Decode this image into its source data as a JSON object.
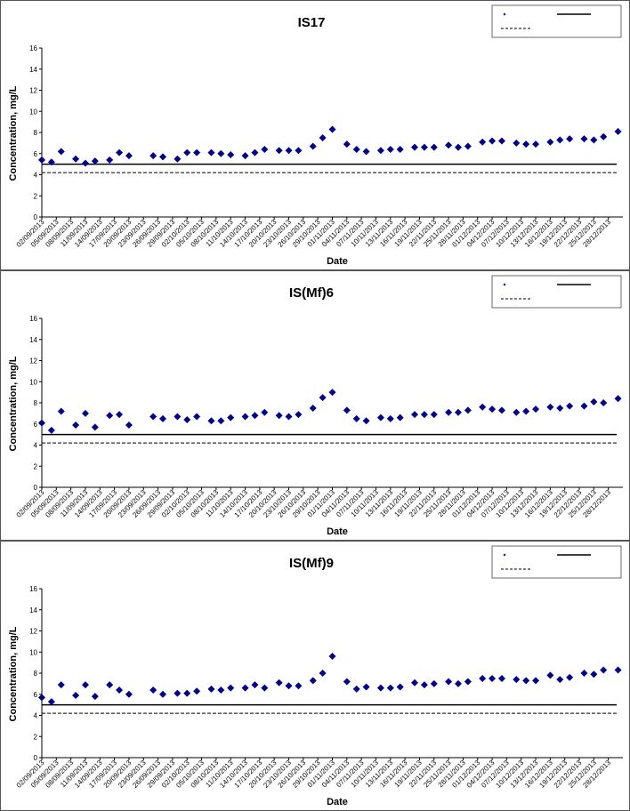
{
  "chart_data": [
    {
      "type": "scatter",
      "title": "IS17",
      "xlabel": "Date",
      "ylabel": "Concentration, mg/L",
      "ylim": [
        0,
        16
      ],
      "yticks": [
        0,
        2,
        4,
        6,
        8,
        10,
        12,
        14,
        16
      ],
      "xlim": [
        "02/09/2013",
        "31/12/2013"
      ],
      "xtick_labels": [
        "02/09/2013",
        "05/09/2013",
        "08/09/2013",
        "11/09/2013",
        "14/09/2013",
        "17/09/2013",
        "20/09/2013",
        "23/09/2013",
        "26/09/2013",
        "29/09/2013",
        "02/10/2013",
        "05/10/2013",
        "08/10/2013",
        "11/10/2013",
        "14/10/2013",
        "17/10/2013",
        "20/10/2013",
        "23/10/2013",
        "26/10/2013",
        "29/10/2013",
        "01/11/2013",
        "04/11/2013",
        "07/11/2013",
        "10/11/2013",
        "13/11/2013",
        "16/11/2013",
        "19/11/2013",
        "22/11/2013",
        "25/11/2013",
        "28/11/2013",
        "01/12/2013",
        "04/12/2013",
        "07/12/2013",
        "10/12/2013",
        "13/12/2013",
        "16/12/2013",
        "19/12/2013",
        "22/12/2013",
        "25/12/2013",
        "28/12/2013"
      ],
      "grid": false,
      "legend_position": "top-right",
      "marker_color": "#00008b",
      "series": [
        {
          "marker": "diamond",
          "x": [
            "02/09/2013",
            "04/09/2013",
            "06/09/2013",
            "09/09/2013",
            "11/09/2013",
            "13/09/2013",
            "16/09/2013",
            "18/09/2013",
            "20/09/2013",
            "25/09/2013",
            "27/09/2013",
            "30/09/2013",
            "02/10/2013",
            "04/10/2013",
            "07/10/2013",
            "09/10/2013",
            "11/10/2013",
            "14/10/2013",
            "16/10/2013",
            "18/10/2013",
            "21/10/2013",
            "23/10/2013",
            "25/10/2013",
            "28/10/2013",
            "30/10/2013",
            "01/11/2013",
            "04/11/2013",
            "06/11/2013",
            "08/11/2013",
            "11/11/2013",
            "13/11/2013",
            "15/11/2013",
            "18/11/2013",
            "20/11/2013",
            "22/11/2013",
            "25/11/2013",
            "27/11/2013",
            "29/11/2013",
            "02/12/2013",
            "04/12/2013",
            "06/12/2013",
            "09/12/2013",
            "11/12/2013",
            "13/12/2013",
            "16/12/2013",
            "18/12/2013",
            "20/12/2013",
            "23/12/2013",
            "25/12/2013",
            "27/12/2013",
            "30/12/2013"
          ],
          "y": [
            5.4,
            5.2,
            6.2,
            5.5,
            5.1,
            5.3,
            5.4,
            6.1,
            5.8,
            5.8,
            5.7,
            5.5,
            6.1,
            6.1,
            6.1,
            6.0,
            5.9,
            5.8,
            6.1,
            6.4,
            6.3,
            6.3,
            6.3,
            6.7,
            7.5,
            8.3,
            6.9,
            6.4,
            6.2,
            6.3,
            6.4,
            6.4,
            6.6,
            6.6,
            6.6,
            6.8,
            6.6,
            6.7,
            7.1,
            7.2,
            7.2,
            7.0,
            6.9,
            6.9,
            7.1,
            7.3,
            7.4,
            7.4,
            7.3,
            7.6,
            8.1
          ]
        },
        {
          "style": "solid",
          "y_constant": 5.0
        },
        {
          "style": "dashed",
          "y_constant": 4.2
        }
      ]
    },
    {
      "type": "scatter",
      "title": "IS(Mf)6",
      "xlabel": "Date",
      "ylabel": "Concentration, mg/L",
      "ylim": [
        0,
        16
      ],
      "yticks": [
        0,
        2,
        4,
        6,
        8,
        10,
        12,
        14,
        16
      ],
      "xlim": [
        "02/09/2013",
        "31/12/2013"
      ],
      "xtick_labels": [
        "02/09/2013",
        "05/09/2013",
        "08/09/2013",
        "11/09/2013",
        "14/09/2013",
        "17/09/2013",
        "20/09/2013",
        "23/09/2013",
        "26/09/2013",
        "29/09/2013",
        "02/10/2013",
        "05/10/2013",
        "08/10/2013",
        "11/10/2013",
        "14/10/2013",
        "17/10/2013",
        "20/10/2013",
        "23/10/2013",
        "26/10/2013",
        "29/10/2013",
        "01/11/2013",
        "04/11/2013",
        "07/11/2013",
        "10/11/2013",
        "13/11/2013",
        "16/11/2013",
        "19/11/2013",
        "22/11/2013",
        "25/11/2013",
        "28/11/2013",
        "01/12/2013",
        "04/12/2013",
        "07/12/2013",
        "10/12/2013",
        "13/12/2013",
        "16/12/2013",
        "19/12/2013",
        "22/12/2013",
        "25/12/2013",
        "28/12/2013"
      ],
      "grid": false,
      "legend_position": "top-right",
      "marker_color": "#00008b",
      "series": [
        {
          "marker": "diamond",
          "x": [
            "02/09/2013",
            "04/09/2013",
            "06/09/2013",
            "09/09/2013",
            "11/09/2013",
            "13/09/2013",
            "16/09/2013",
            "18/09/2013",
            "20/09/2013",
            "25/09/2013",
            "27/09/2013",
            "30/09/2013",
            "02/10/2013",
            "04/10/2013",
            "07/10/2013",
            "09/10/2013",
            "11/10/2013",
            "14/10/2013",
            "16/10/2013",
            "18/10/2013",
            "21/10/2013",
            "23/10/2013",
            "25/10/2013",
            "28/10/2013",
            "30/10/2013",
            "01/11/2013",
            "04/11/2013",
            "06/11/2013",
            "08/11/2013",
            "11/11/2013",
            "13/11/2013",
            "15/11/2013",
            "18/11/2013",
            "20/11/2013",
            "22/11/2013",
            "25/11/2013",
            "27/11/2013",
            "29/11/2013",
            "02/12/2013",
            "04/12/2013",
            "06/12/2013",
            "09/12/2013",
            "11/12/2013",
            "13/12/2013",
            "16/12/2013",
            "18/12/2013",
            "20/12/2013",
            "23/12/2013",
            "25/12/2013",
            "27/12/2013",
            "30/12/2013"
          ],
          "y": [
            6.1,
            5.4,
            7.2,
            5.9,
            7.0,
            5.7,
            6.8,
            6.9,
            5.9,
            6.7,
            6.5,
            6.7,
            6.4,
            6.7,
            6.3,
            6.3,
            6.6,
            6.7,
            6.8,
            7.1,
            6.8,
            6.7,
            6.9,
            7.5,
            8.5,
            9.0,
            7.3,
            6.5,
            6.3,
            6.6,
            6.5,
            6.6,
            6.9,
            6.9,
            6.9,
            7.1,
            7.1,
            7.3,
            7.6,
            7.4,
            7.3,
            7.1,
            7.2,
            7.4,
            7.6,
            7.5,
            7.7,
            7.7,
            8.1,
            8.0,
            8.4
          ]
        },
        {
          "style": "solid",
          "y_constant": 5.0
        },
        {
          "style": "dashed",
          "y_constant": 4.2
        }
      ]
    },
    {
      "type": "scatter",
      "title": "IS(Mf)9",
      "xlabel": "Date",
      "ylabel": "Concentration, mg/L",
      "ylim": [
        0,
        16
      ],
      "yticks": [
        0,
        2,
        4,
        6,
        8,
        10,
        12,
        14,
        16
      ],
      "xlim": [
        "02/09/2013",
        "31/12/2013"
      ],
      "xtick_labels": [
        "02/09/2013",
        "05/09/2013",
        "08/09/2013",
        "11/09/2013",
        "14/09/2013",
        "17/09/2013",
        "20/09/2013",
        "23/09/2013",
        "26/09/2013",
        "29/09/2013",
        "02/10/2013",
        "05/10/2013",
        "08/10/2013",
        "11/10/2013",
        "14/10/2013",
        "17/10/2013",
        "20/10/2013",
        "23/10/2013",
        "26/10/2013",
        "29/10/2013",
        "01/11/2013",
        "04/11/2013",
        "07/11/2013",
        "10/11/2013",
        "13/11/2013",
        "16/11/2013",
        "19/11/2013",
        "22/11/2013",
        "25/11/2013",
        "28/11/2013",
        "01/12/2013",
        "04/12/2013",
        "07/12/2013",
        "10/12/2013",
        "13/12/2013",
        "16/12/2013",
        "19/12/2013",
        "22/12/2013",
        "25/12/2013",
        "28/12/2013"
      ],
      "grid": false,
      "legend_position": "top-right",
      "marker_color": "#00008b",
      "series": [
        {
          "marker": "diamond",
          "x": [
            "02/09/2013",
            "04/09/2013",
            "06/09/2013",
            "09/09/2013",
            "11/09/2013",
            "13/09/2013",
            "16/09/2013",
            "18/09/2013",
            "20/09/2013",
            "25/09/2013",
            "27/09/2013",
            "30/09/2013",
            "02/10/2013",
            "04/10/2013",
            "07/10/2013",
            "09/10/2013",
            "11/10/2013",
            "14/10/2013",
            "16/10/2013",
            "18/10/2013",
            "21/10/2013",
            "23/10/2013",
            "25/10/2013",
            "28/10/2013",
            "30/10/2013",
            "01/11/2013",
            "04/11/2013",
            "06/11/2013",
            "08/11/2013",
            "11/11/2013",
            "13/11/2013",
            "15/11/2013",
            "18/11/2013",
            "20/11/2013",
            "22/11/2013",
            "25/11/2013",
            "27/11/2013",
            "29/11/2013",
            "02/12/2013",
            "04/12/2013",
            "06/12/2013",
            "09/12/2013",
            "11/12/2013",
            "13/12/2013",
            "16/12/2013",
            "18/12/2013",
            "20/12/2013",
            "23/12/2013",
            "25/12/2013",
            "27/12/2013",
            "30/12/2013"
          ],
          "y": [
            5.7,
            5.3,
            6.9,
            5.9,
            6.9,
            5.8,
            6.9,
            6.4,
            6.0,
            6.4,
            6.0,
            6.1,
            6.1,
            6.3,
            6.5,
            6.4,
            6.6,
            6.6,
            6.9,
            6.6,
            7.1,
            6.8,
            6.8,
            7.3,
            8.0,
            9.6,
            7.2,
            6.5,
            6.7,
            6.6,
            6.6,
            6.7,
            7.1,
            6.9,
            7.0,
            7.2,
            7.0,
            7.2,
            7.5,
            7.5,
            7.5,
            7.4,
            7.3,
            7.3,
            7.8,
            7.4,
            7.6,
            8.0,
            7.9,
            8.3,
            8.3
          ]
        },
        {
          "style": "solid",
          "y_constant": 5.0
        },
        {
          "style": "dashed",
          "y_constant": 4.2
        }
      ]
    }
  ]
}
